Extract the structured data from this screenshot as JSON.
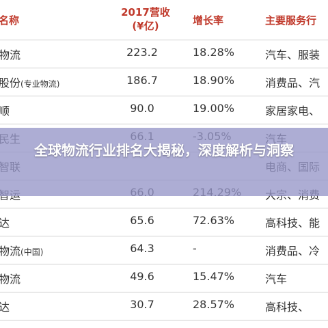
{
  "header": {
    "name": "名称",
    "revenue_line1": "2017营收",
    "revenue_line2": "(¥亿)",
    "growth": "增长率",
    "main_business": "主要服务行"
  },
  "rows": [
    {
      "name": "物流",
      "note": "",
      "revenue": "223.2",
      "growth": "18.28%",
      "main": "汽车、服装"
    },
    {
      "name": "股份",
      "note": "(专业物流)",
      "revenue": "186.7",
      "growth": "18.90%",
      "main": "消费品、汽"
    },
    {
      "name": "顺",
      "note": "",
      "revenue": "90.0",
      "growth": "19.00%",
      "main": "家居家电、"
    },
    {
      "name": "民生",
      "note": "",
      "revenue": "66.1",
      "growth": "-3.05%",
      "main": "汽车"
    },
    {
      "name": "智联",
      "note": "",
      "revenue": "",
      "growth": "",
      "main": "电商、国际"
    },
    {
      "name": "智运",
      "note": "",
      "revenue": "66.0",
      "growth": "214.29%",
      "main": "大宗、消费"
    },
    {
      "name": "达",
      "note": "",
      "revenue": "65.6",
      "growth": "72.63%",
      "main": "高科技、能"
    },
    {
      "name": "物流",
      "note": "(中国)",
      "revenue": "64.3",
      "growth": "-",
      "main": "消费品、冷"
    },
    {
      "name": "物流",
      "note": "",
      "revenue": "49.6",
      "growth": "15.47%",
      "main": "汽车"
    },
    {
      "name": "达",
      "note": "",
      "revenue": "30.7",
      "growth": "28.57%",
      "main": "高科技、"
    }
  ],
  "banner": {
    "title": "全球物流行业排名大揭秘，深度解析与洞察"
  },
  "colors": {
    "header_text": "#c0392b",
    "banner_overlay": "#9696c8",
    "grid_line": "#cfcfcf"
  }
}
